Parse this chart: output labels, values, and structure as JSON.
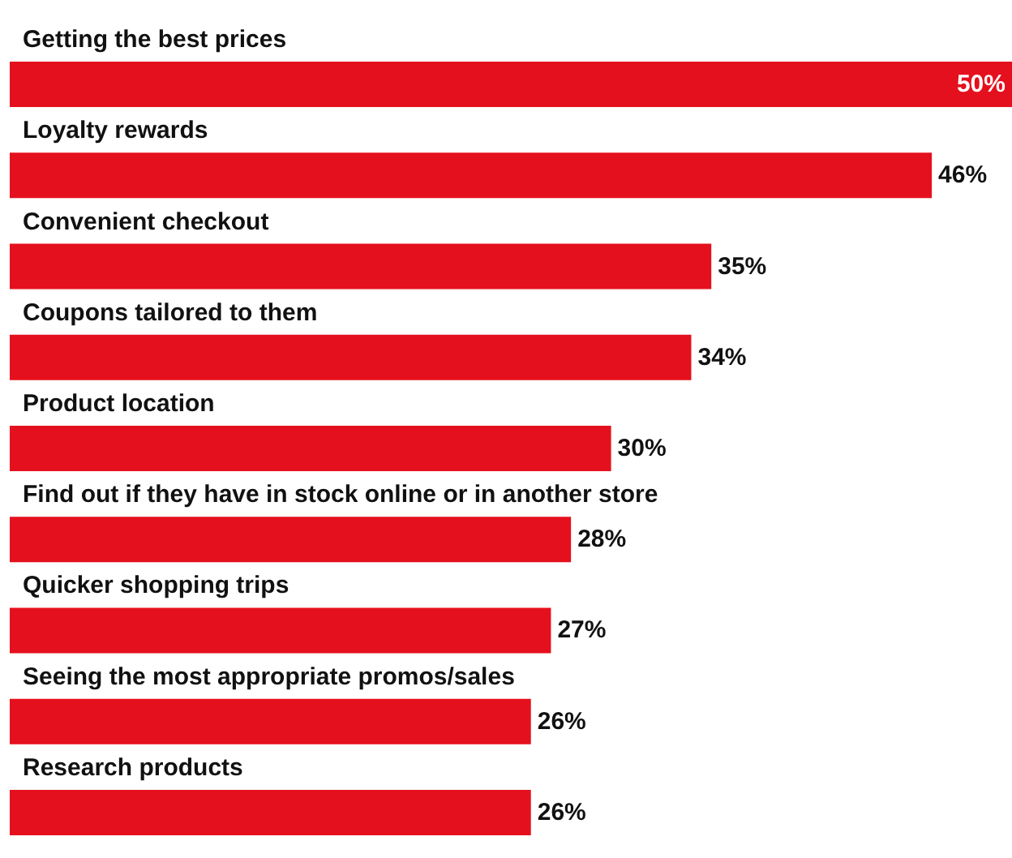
{
  "chart_data": {
    "type": "bar",
    "orientation": "horizontal",
    "tick_labels": "y",
    "categories": [
      "Getting the best prices",
      "Loyalty rewards",
      "Convenient checkout",
      "Coupons tailored to them",
      "Product location",
      "Find out if they have in stock online or in another store",
      "Quicker shopping trips",
      "Seeing the most appropriate promos/sales",
      "Research products"
    ],
    "values": [
      50,
      46,
      35,
      34,
      30,
      28,
      27,
      26,
      26
    ],
    "value_labels": [
      "50%",
      "46%",
      "35%",
      "34%",
      "30%",
      "28%",
      "27%",
      "26%",
      "26%"
    ],
    "color": "#e5101d"
  }
}
